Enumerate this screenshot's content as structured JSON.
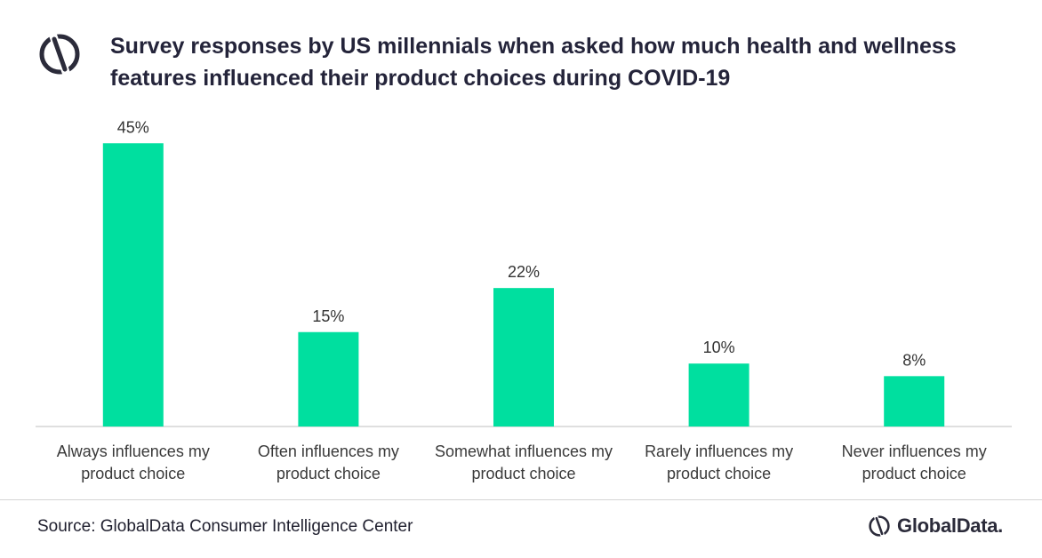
{
  "title": "Survey responses by US millennials when asked how much health and wellness features influenced their product choices during COVID-19",
  "source": "Source: GlobalData Consumer Intelligence Center",
  "brand_name": "GlobalData.",
  "colors": {
    "bar": "#00df9f",
    "text": "#24243a",
    "axis": "#bfbfbf"
  },
  "icons": {
    "header": "globaldata-mark-icon",
    "brand": "globaldata-mark-icon"
  },
  "chart_data": {
    "type": "bar",
    "categories": [
      [
        "Always influences my",
        "product choice"
      ],
      [
        "Often influences my",
        "product choice"
      ],
      [
        "Somewhat influences my",
        "product choice"
      ],
      [
        "Rarely influences my",
        "product choice"
      ],
      [
        "Never influences my",
        "product choice"
      ]
    ],
    "values": [
      45,
      15,
      22,
      10,
      8
    ],
    "data_labels": [
      "45%",
      "15%",
      "22%",
      "10%",
      "8%"
    ],
    "unit": "%",
    "ylim": [
      0,
      48
    ],
    "grid": false,
    "legend": "none"
  }
}
